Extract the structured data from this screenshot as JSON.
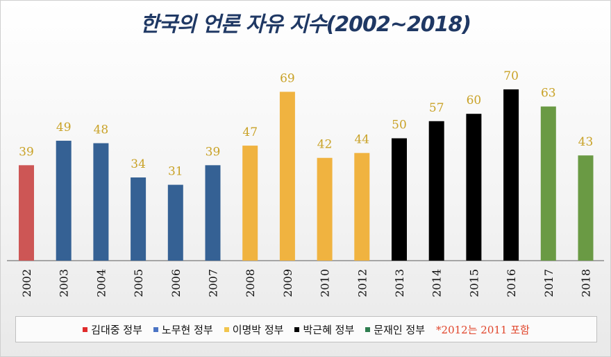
{
  "chart_data": {
    "type": "bar",
    "title": "한국의 언론 자유 지수(2002~2018)",
    "categories": [
      "2002",
      "2003",
      "2004",
      "2005",
      "2006",
      "2007",
      "2008",
      "2009",
      "2010",
      "2012",
      "2013",
      "2014",
      "2015",
      "2016",
      "2017",
      "2018"
    ],
    "values": [
      39,
      49,
      48,
      34,
      31,
      39,
      47,
      69,
      42,
      44,
      50,
      57,
      60,
      70,
      63,
      43
    ],
    "groups": [
      0,
      1,
      1,
      1,
      1,
      1,
      2,
      2,
      2,
      2,
      3,
      3,
      3,
      3,
      4,
      4
    ],
    "group_colors": [
      "#cd5655",
      "#356194",
      "#f0b340",
      "#000000",
      "#6a9a44"
    ],
    "value_label_color": "#c9a227",
    "ylim": [
      0,
      75
    ],
    "grid": false,
    "legend": {
      "position": "bottom",
      "items": [
        {
          "label": "김대중 정부",
          "color": "#e02b2b"
        },
        {
          "label": "노무현 정부",
          "color": "#4b74c4"
        },
        {
          "label": "이명박 정부",
          "color": "#f1c54e"
        },
        {
          "label": "박근혜 정부",
          "color": "#000000"
        },
        {
          "label": "문재인 정부",
          "color": "#2e7d4f"
        }
      ],
      "note": "*2012는  2011 포함"
    }
  }
}
